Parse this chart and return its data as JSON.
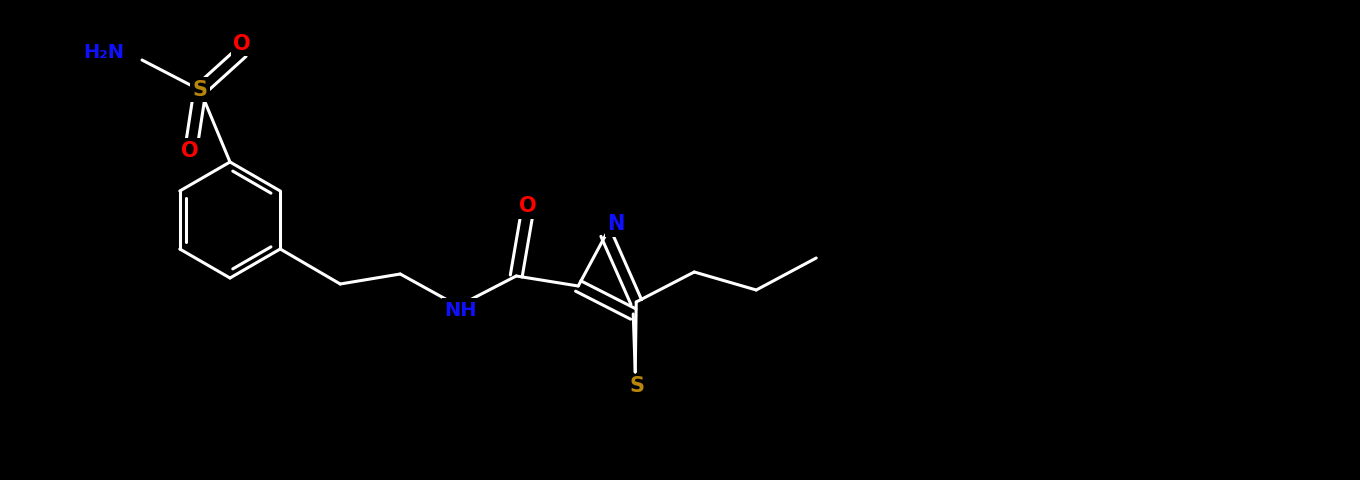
{
  "background_color": "#000000",
  "bond_color": "#ffffff",
  "bond_width": 2.2,
  "figsize": [
    13.6,
    4.8
  ],
  "dpi": 100,
  "atom_colors": {
    "O": "#ff0000",
    "N": "#1010ff",
    "S": "#b8860b",
    "C": "#ffffff"
  }
}
